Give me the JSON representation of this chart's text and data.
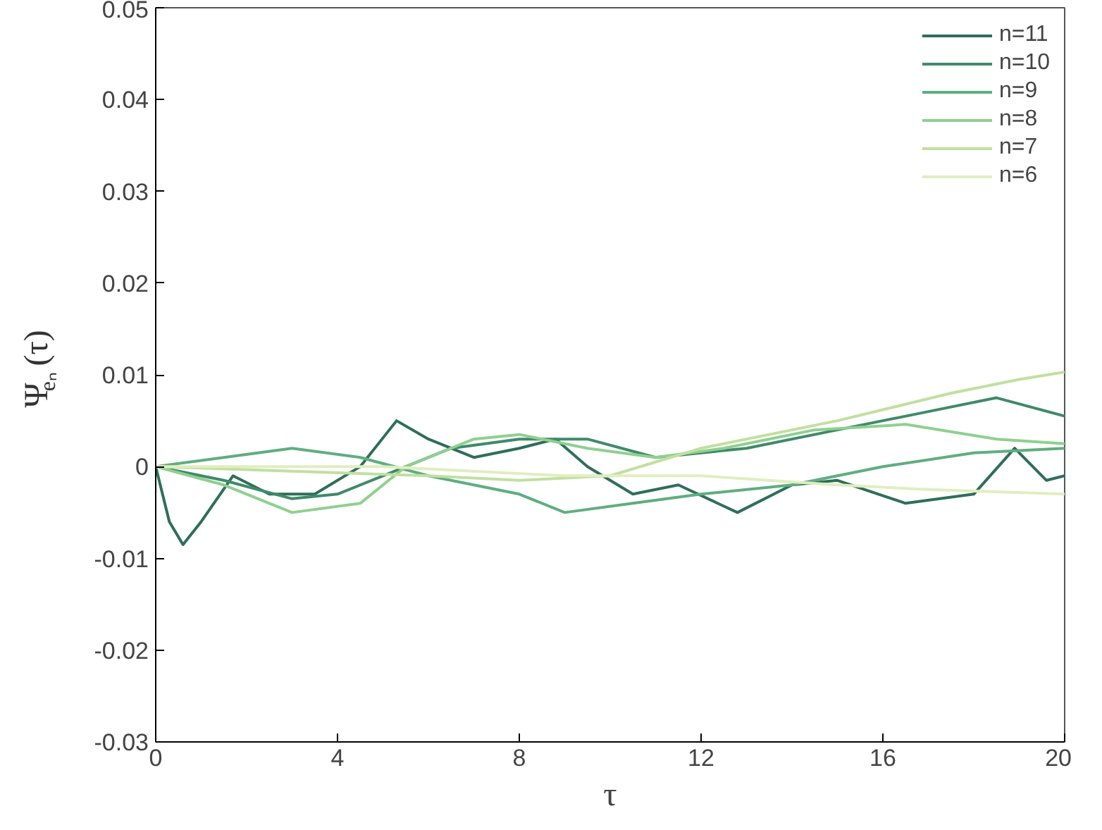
{
  "chart_data": {
    "type": "line",
    "xlabel": "τ",
    "ylabel": "Ψ$_{eₙ}$(τ)",
    "xlim": [
      0,
      20
    ],
    "ylim": [
      -0.03,
      0.05
    ],
    "xticks": [
      0,
      4,
      8,
      12,
      16,
      20
    ],
    "yticks": [
      {
        "value": -0.03,
        "label": "-0.03"
      },
      {
        "value": -0.02,
        "label": "-0.02"
      },
      {
        "value": -0.01,
        "label": "-0.01"
      },
      0,
      {
        "value": 0.01,
        "label": "0.01"
      },
      {
        "value": 0.02,
        "label": "0.02"
      },
      {
        "value": 0.03,
        "label": "0.03"
      },
      {
        "value": 0.04,
        "label": "0.04"
      },
      {
        "value": 0.05,
        "label": "0.05"
      }
    ],
    "grid": false,
    "legend": "top right",
    "line_style": "solid",
    "marker": "none",
    "series": [
      {
        "name": "n=11",
        "color": "#2f6e5a",
        "x": [
          0,
          0.3,
          0.6,
          1.0,
          1.7,
          2.5,
          3.5,
          4.5,
          5.3,
          6.0,
          7.0,
          8.0,
          8.8,
          9.5,
          10.5,
          11.5,
          12.8,
          14.0,
          15.0,
          16.5,
          18.0,
          18.9,
          19.6,
          20
        ],
        "values": [
          0,
          -0.006,
          -0.0085,
          -0.006,
          -0.001,
          -0.003,
          -0.003,
          0.0,
          0.005,
          0.003,
          0.001,
          0.002,
          0.003,
          0.0,
          -0.003,
          -0.002,
          -0.005,
          -0.002,
          -0.0015,
          -0.004,
          -0.003,
          0.002,
          -0.0015,
          -0.001
        ]
      },
      {
        "name": "n=10",
        "color": "#3f8a6a",
        "x": [
          0,
          1.5,
          3,
          4,
          5,
          6.5,
          8,
          9.5,
          11,
          13,
          15,
          17,
          18.5,
          20
        ],
        "values": [
          0,
          -0.0015,
          -0.0035,
          -0.003,
          -0.001,
          0.002,
          0.003,
          0.003,
          0.001,
          0.002,
          0.004,
          0.006,
          0.0075,
          0.0055
        ]
      },
      {
        "name": "n=9",
        "color": "#5fae80",
        "x": [
          0,
          1.5,
          3,
          4.5,
          6,
          8,
          9,
          10.5,
          12,
          14,
          16,
          18,
          20
        ],
        "values": [
          0,
          0.001,
          0.002,
          0.001,
          -0.001,
          -0.003,
          -0.005,
          -0.004,
          -0.003,
          -0.002,
          0,
          0.0015,
          0.002
        ]
      },
      {
        "name": "n=8",
        "color": "#8fd08f",
        "x": [
          0,
          1.5,
          3,
          4.5,
          5.5,
          7,
          8,
          9.5,
          11,
          12.5,
          14.5,
          16.5,
          18.5,
          20
        ],
        "values": [
          0,
          -0.002,
          -0.005,
          -0.004,
          0,
          0.003,
          0.0035,
          0.002,
          0.001,
          0.002,
          0.004,
          0.0046,
          0.003,
          0.0025
        ]
      },
      {
        "name": "n=7",
        "color": "#c0e0a0",
        "x": [
          0,
          3,
          6,
          8,
          10,
          12,
          15,
          17.5,
          19,
          20
        ],
        "values": [
          0,
          -0.0005,
          -0.001,
          -0.0015,
          -0.001,
          0.002,
          0.005,
          0.008,
          0.0095,
          0.0103
        ]
      },
      {
        "name": "n=6",
        "color": "#e0eec0",
        "x": [
          0,
          5,
          9,
          12,
          15,
          17,
          20
        ],
        "values": [
          0,
          0,
          -0.001,
          -0.001,
          -0.002,
          -0.0025,
          -0.003
        ]
      }
    ]
  }
}
